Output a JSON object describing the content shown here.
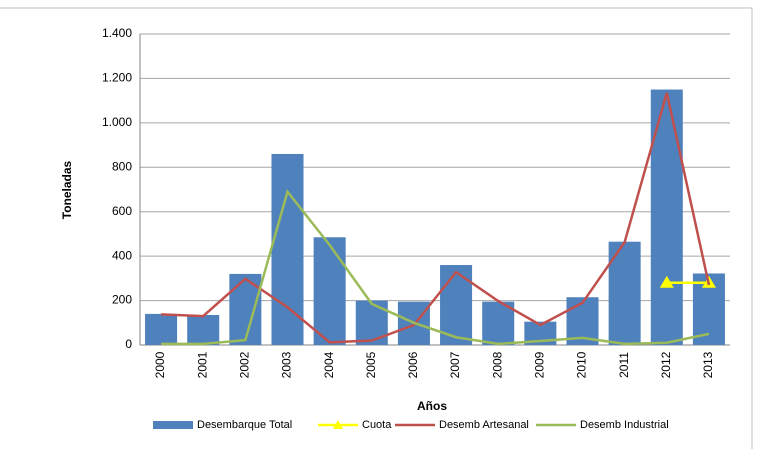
{
  "chart_data": {
    "type": "bar_line",
    "x_label": "Años",
    "y_label": "Toneladas",
    "categories": [
      "2000",
      "2001",
      "2002",
      "2003",
      "2004",
      "2005",
      "2006",
      "2007",
      "2008",
      "2009",
      "2010",
      "2011",
      "2012",
      "2013"
    ],
    "ylim": [
      0,
      1400
    ],
    "yticks": [
      0,
      200,
      400,
      600,
      800,
      {
        "value": 1000,
        "label": "1.000"
      },
      {
        "value": 1200,
        "label": "1.200"
      },
      {
        "value": 1400,
        "label": "1.400"
      }
    ],
    "grid": true,
    "series": [
      {
        "name": "Desembarque Total",
        "kind": "bar",
        "color": "#4f81bd",
        "values": [
          140,
          135,
          320,
          860,
          485,
          200,
          195,
          360,
          195,
          105,
          215,
          465,
          1150,
          322
        ]
      },
      {
        "name": "Cuota",
        "kind": "line",
        "marker": "triangle",
        "color": "#ffff00",
        "values": [
          null,
          null,
          null,
          null,
          null,
          null,
          null,
          null,
          null,
          null,
          null,
          null,
          280,
          280
        ]
      },
      {
        "name": "Desemb Artesanal",
        "kind": "line",
        "color": "#c0504d",
        "values": [
          138,
          130,
          298,
          170,
          12,
          20,
          90,
          328,
          198,
          90,
          190,
          463,
          1135,
          270
        ]
      },
      {
        "name": "Desemb Industrial",
        "kind": "line",
        "color": "#9bbb59",
        "values": [
          5,
          5,
          22,
          690,
          450,
          185,
          100,
          35,
          5,
          18,
          32,
          5,
          10,
          50
        ]
      }
    ]
  }
}
